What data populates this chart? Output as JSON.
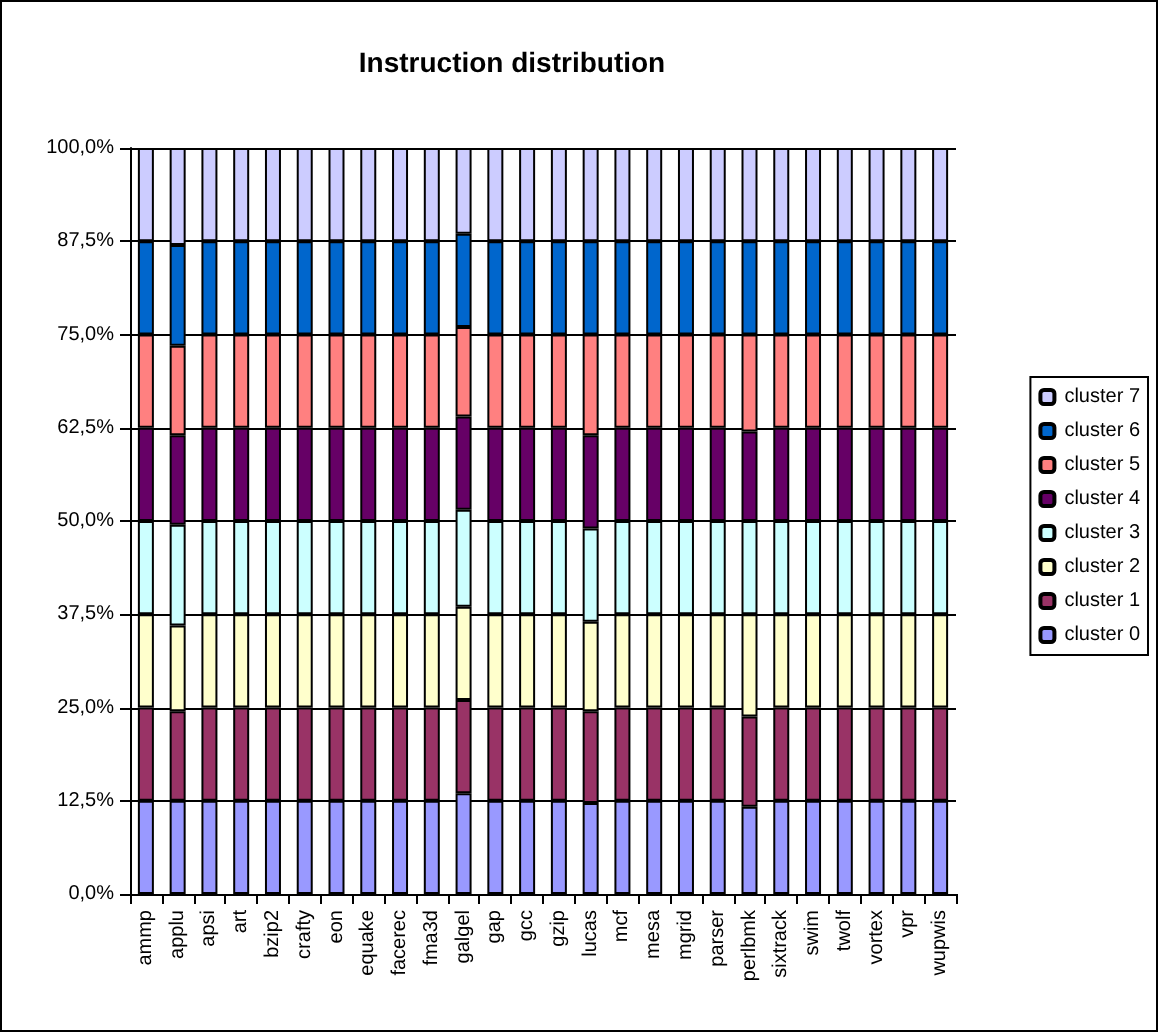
{
  "chart_data": {
    "type": "bar",
    "title": "Instruction distribution",
    "stacked": true,
    "categories": [
      "ammp",
      "applu",
      "apsi",
      "art",
      "bzip2",
      "crafty",
      "eon",
      "equake",
      "facerec",
      "fma3d",
      "galgel",
      "gap",
      "gcc",
      "gzip",
      "lucas",
      "mcf",
      "mesa",
      "mgrid",
      "parser",
      "perlbmk",
      "sixtrack",
      "swim",
      "twolf",
      "vortex",
      "vpr",
      "wupwis"
    ],
    "series": [
      {
        "name": "cluster 0",
        "color": "#9999ff",
        "values": [
          12.5,
          12.5,
          12.5,
          12.5,
          12.5,
          12.5,
          12.5,
          12.5,
          12.5,
          12.5,
          13.5,
          12.5,
          12.5,
          12.5,
          12.2,
          12.5,
          12.5,
          12.5,
          12.5,
          11.7,
          12.5,
          12.5,
          12.5,
          12.5,
          12.5,
          12.5
        ]
      },
      {
        "name": "cluster 1",
        "color": "#993366",
        "values": [
          12.5,
          12,
          12.5,
          12.5,
          12.5,
          12.5,
          12.5,
          12.5,
          12.5,
          12.5,
          12.5,
          12.5,
          12.5,
          12.5,
          12.3,
          12.5,
          12.5,
          12.5,
          12.5,
          12.1,
          12.5,
          12.5,
          12.5,
          12.5,
          12.5,
          12.5
        ]
      },
      {
        "name": "cluster 2",
        "color": "#ffffcc",
        "values": [
          12.5,
          11.5,
          12.5,
          12.5,
          12.5,
          12.5,
          12.5,
          12.5,
          12.5,
          12.5,
          12.5,
          12.5,
          12.5,
          12.5,
          12,
          12.5,
          12.5,
          12.5,
          12.5,
          13.7,
          12.5,
          12.5,
          12.5,
          12.5,
          12.5,
          12.5
        ]
      },
      {
        "name": "cluster 3",
        "color": "#ccffff",
        "values": [
          12.5,
          13.5,
          12.5,
          12.5,
          12.5,
          12.5,
          12.5,
          12.5,
          12.5,
          12.5,
          13,
          12.5,
          12.5,
          12.5,
          12.5,
          12.5,
          12.5,
          12.5,
          12.5,
          12.5,
          12.5,
          12.5,
          12.5,
          12.5,
          12.5,
          12.5
        ]
      },
      {
        "name": "cluster 4",
        "color": "#660066",
        "values": [
          12.5,
          12,
          12.5,
          12.5,
          12.5,
          12.5,
          12.5,
          12.5,
          12.5,
          12.5,
          12.5,
          12.5,
          12.5,
          12.5,
          12.5,
          12.5,
          12.5,
          12.5,
          12.5,
          12,
          12.5,
          12.5,
          12.5,
          12.5,
          12.5,
          12.5
        ]
      },
      {
        "name": "cluster 5",
        "color": "#ff8080",
        "values": [
          12.5,
          12,
          12.5,
          12.5,
          12.5,
          12.5,
          12.5,
          12.5,
          12.5,
          12.5,
          12,
          12.5,
          12.5,
          12.5,
          13.5,
          12.5,
          12.5,
          12.5,
          12.5,
          13,
          12.5,
          12.5,
          12.5,
          12.5,
          12.5,
          12.5
        ]
      },
      {
        "name": "cluster 6",
        "color": "#0066cc",
        "values": [
          12.5,
          13.5,
          12.5,
          12.5,
          12.5,
          12.5,
          12.5,
          12.5,
          12.5,
          12.5,
          12.5,
          12.5,
          12.5,
          12.5,
          12.5,
          12.5,
          12.5,
          12.5,
          12.5,
          12.5,
          12.5,
          12.5,
          12.5,
          12.5,
          12.5,
          12.5
        ]
      },
      {
        "name": "cluster 7",
        "color": "#ccccff",
        "values": [
          12.5,
          13,
          12.5,
          12.5,
          12.5,
          12.5,
          12.5,
          12.5,
          12.5,
          12.5,
          11.5,
          12.5,
          12.5,
          12.5,
          12.5,
          12.5,
          12.5,
          12.5,
          12.5,
          12.5,
          12.5,
          12.5,
          12.5,
          12.5,
          12.5,
          12.5
        ]
      }
    ],
    "ylim": [
      0,
      100
    ],
    "yticks": [
      {
        "value": 0,
        "label": "0,0%"
      },
      {
        "value": 12.5,
        "label": "12,5%"
      },
      {
        "value": 25,
        "label": "25,0%"
      },
      {
        "value": 37.5,
        "label": "37,5%"
      },
      {
        "value": 50,
        "label": "50,0%"
      },
      {
        "value": 62.5,
        "label": "62,5%"
      },
      {
        "value": 75,
        "label": "75,0%"
      },
      {
        "value": 87.5,
        "label": "87,5%"
      },
      {
        "value": 100,
        "label": "100,0%"
      }
    ],
    "grid": "y",
    "legend": "right"
  }
}
